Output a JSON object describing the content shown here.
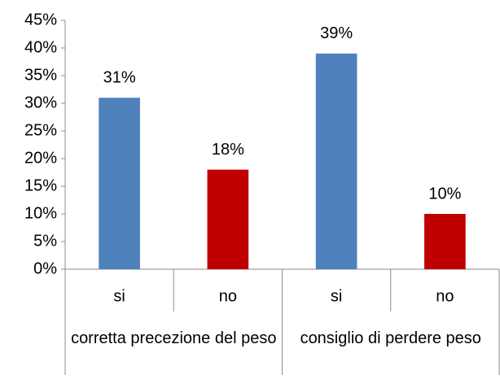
{
  "chart_data": {
    "type": "bar",
    "categories": [
      "si",
      "no",
      "si",
      "no"
    ],
    "groups": [
      "corretta precezione del peso",
      "consiglio di perdere peso"
    ],
    "values": [
      31,
      18,
      39,
      10
    ],
    "value_labels": [
      "31%",
      "18%",
      "39%",
      "10%"
    ],
    "colors": [
      "#4f81bd",
      "#c00000",
      "#4f81bd",
      "#c00000"
    ],
    "ylim": [
      0,
      45
    ],
    "yticks": [
      {
        "value": 0,
        "label": "0%"
      },
      {
        "value": 5,
        "label": "5%"
      },
      {
        "value": 10,
        "label": "10%"
      },
      {
        "value": 15,
        "label": "15%"
      },
      {
        "value": 20,
        "label": "20%"
      },
      {
        "value": 25,
        "label": "25%"
      },
      {
        "value": 30,
        "label": "30%"
      },
      {
        "value": 35,
        "label": "35%"
      },
      {
        "value": 40,
        "label": "40%"
      },
      {
        "value": 45,
        "label": "45%"
      }
    ],
    "grid": false
  }
}
